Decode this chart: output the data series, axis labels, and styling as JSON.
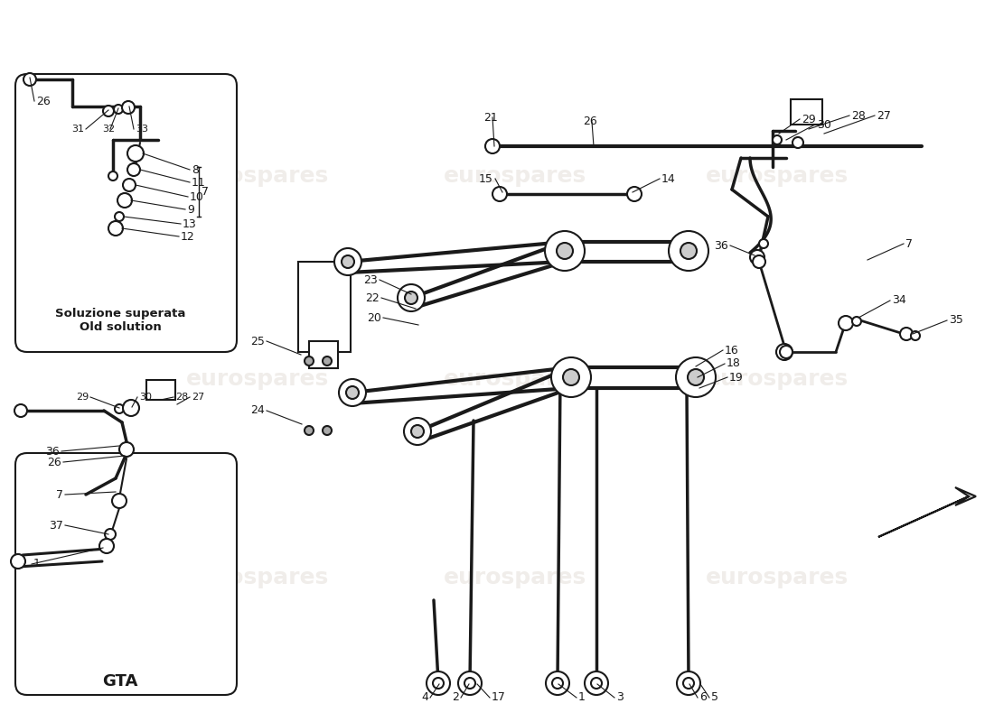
{
  "bg_color": "#ffffff",
  "fig_width": 11.0,
  "fig_height": 8.0,
  "dpi": 100,
  "lc": "#1a1a1a",
  "wm_color": "#d8d0c8",
  "wm_alpha": 0.38,
  "wm_text": "eurospares",
  "box1_caption1": "Soluzione superata",
  "box1_caption2": "Old solution",
  "box2_caption": "GTA"
}
